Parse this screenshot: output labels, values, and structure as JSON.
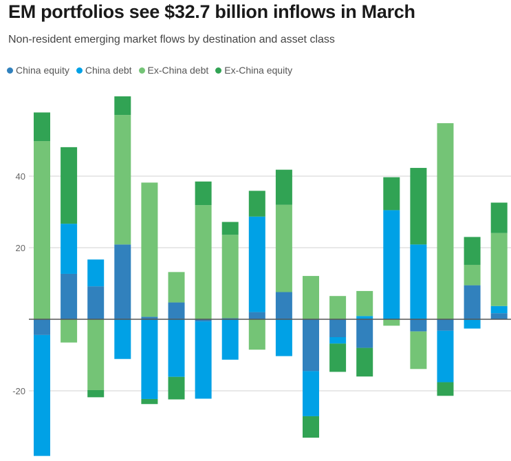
{
  "chart_data": {
    "type": "bar",
    "stacked": true,
    "title": "EM portfolios see $32.7 billion inflows in March",
    "subtitle": "Non-resident emerging market flows by destination and asset class",
    "xlabel": "",
    "ylabel": "",
    "ylim": [
      -38,
      62
    ],
    "yticks": [
      -20,
      0,
      20,
      40
    ],
    "grid": true,
    "legend_position": "top-left",
    "series": [
      {
        "name": "China equity",
        "color": "#3181bd",
        "values": [
          -4.4,
          12.7,
          9.2,
          20.9,
          0.7,
          4.7,
          -0.6,
          0.3,
          2.0,
          7.6,
          -14.5,
          -5.0,
          -8.0,
          0,
          -3.4,
          -3.2,
          9.5,
          1.7
        ]
      },
      {
        "name": "China debt",
        "color": "#00a1e6",
        "values": [
          -33.8,
          14.0,
          7.5,
          -11.1,
          -22.3,
          -16.1,
          -21.6,
          -11.3,
          26.7,
          -10.3,
          -12.6,
          -1.8,
          0.9,
          30.5,
          20.9,
          -14.4,
          -2.6,
          2.0
        ]
      },
      {
        "name": "Ex-China debt",
        "color": "#74c476",
        "values": [
          49.8,
          -6.5,
          -19.8,
          36.2,
          37.5,
          8.5,
          31.9,
          23.3,
          -8.5,
          24.4,
          12.1,
          6.5,
          7.0,
          -1.8,
          -10.5,
          54.8,
          5.7,
          20.4
        ]
      },
      {
        "name": "Ex-China equity",
        "color": "#31a354",
        "values": [
          8.0,
          21.4,
          -2.0,
          5.2,
          -1.4,
          -6.3,
          6.6,
          3.6,
          7.2,
          9.8,
          -6.0,
          -7.9,
          -8.0,
          9.2,
          21.4,
          -3.8,
          7.8,
          8.5
        ]
      }
    ]
  }
}
